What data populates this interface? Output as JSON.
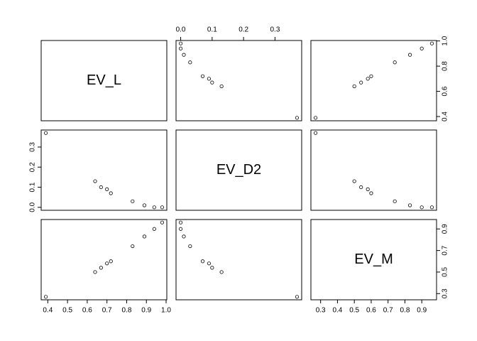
{
  "chart_data": {
    "type": "scatter-matrix",
    "point_color": "#000000",
    "variables": [
      {
        "name": "EV_L",
        "values": [
          0.39,
          0.64,
          0.67,
          0.7,
          0.72,
          0.83,
          0.89,
          0.94,
          0.98
        ],
        "lim": [
          0.3664,
          1.0036
        ],
        "xticks": [
          0.4,
          0.5,
          0.6,
          0.7,
          0.8,
          0.9,
          {
            "value": 1,
            "label": "1.0"
          }
        ],
        "yticks": [
          0.4,
          0.6,
          0.8,
          {
            "value": 1,
            "label": "1.0"
          }
        ]
      },
      {
        "name": "EV_D2",
        "values": [
          0.37,
          0.13,
          0.1,
          0.09,
          0.07,
          0.03,
          0.01,
          0.0,
          0.0
        ],
        "lim": [
          -0.0148,
          0.3848
        ],
        "xticks": [
          {
            "value": 0,
            "label": "0.0"
          },
          0.1,
          0.2,
          0.3
        ],
        "yticks": [
          {
            "value": 0,
            "label": "0.0"
          },
          0.1,
          0.2,
          0.3
        ]
      },
      {
        "name": "EV_M",
        "values": [
          0.27,
          0.5,
          0.54,
          0.58,
          0.6,
          0.74,
          0.83,
          0.9,
          0.96
        ],
        "lim": [
          0.2424,
          0.9876
        ],
        "xticks": [
          0.3,
          0.4,
          0.5,
          0.6,
          0.7,
          0.8,
          0.9
        ],
        "yticks": [
          0.3,
          0.5,
          0.7,
          0.9
        ]
      }
    ]
  }
}
